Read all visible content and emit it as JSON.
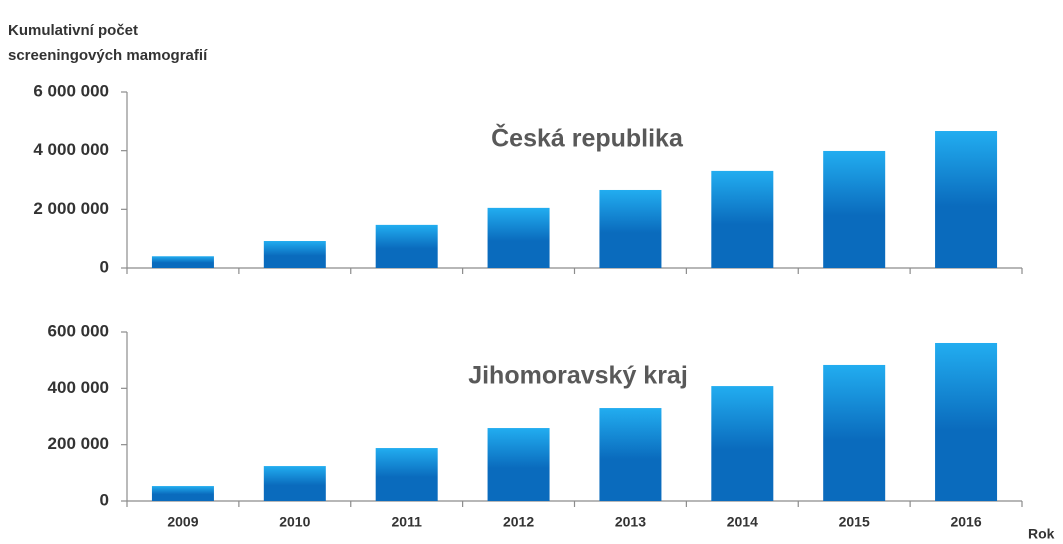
{
  "ylabel": [
    "Kumulativní počet",
    "screeningových mamografií"
  ],
  "chart_data": [
    {
      "type": "bar",
      "title": "Česká republika",
      "values": [
        400000,
        920000,
        1470000,
        2050000,
        2660000,
        3310000,
        3990000,
        4670000
      ],
      "colors": [
        "#22adf0",
        "#0a6bbd"
      ],
      "ylim": [
        0,
        6000000
      ],
      "yticks": [
        0,
        {
          "value": 2000000,
          "label": "2 000 000"
        },
        {
          "value": 4000000,
          "label": "4 000 000"
        },
        {
          "value": 6000000,
          "label": "6 000 000"
        }
      ]
    },
    {
      "type": "bar",
      "title": "Jihomoravský kraj",
      "xlabel": "Rok",
      "categories": [
        "2009",
        "2010",
        "2011",
        "2012",
        "2013",
        "2014",
        "2015",
        "2016"
      ],
      "values": [
        53000,
        124000,
        188000,
        259000,
        330000,
        408000,
        483000,
        561000
      ],
      "colors": [
        "#22adf0",
        "#0a6bbd"
      ],
      "ylim": [
        0,
        600000
      ],
      "yticks": [
        0,
        {
          "value": 200000,
          "label": "200 000"
        },
        {
          "value": 400000,
          "label": "400 000"
        },
        {
          "value": 600000,
          "label": "600 000"
        }
      ]
    }
  ]
}
